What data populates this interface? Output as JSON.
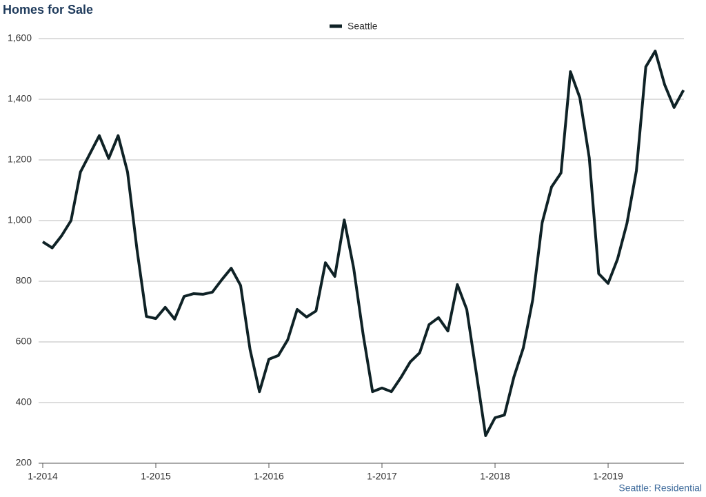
{
  "chart_data": {
    "type": "line",
    "title": "Homes for Sale",
    "source": "Seattle: Residential",
    "categories": [
      "1-2014",
      null,
      null,
      null,
      null,
      null,
      null,
      null,
      null,
      null,
      null,
      null,
      "1-2015",
      null,
      null,
      null,
      null,
      null,
      null,
      null,
      null,
      null,
      null,
      null,
      "1-2016",
      null,
      null,
      null,
      null,
      null,
      null,
      null,
      null,
      null,
      null,
      null,
      "1-2017",
      null,
      null,
      null,
      null,
      null,
      null,
      null,
      null,
      null,
      null,
      null,
      "1-2018",
      null,
      null,
      null,
      null,
      null,
      null,
      null,
      null,
      null,
      null,
      null,
      "1-2019",
      null,
      null,
      null,
      null,
      null,
      null,
      null,
      null
    ],
    "series": [
      {
        "name": "Seattle",
        "color": "#0f2226",
        "values": [
          930,
          910,
          950,
          1000,
          1160,
          1220,
          1280,
          1205,
          1280,
          1160,
          905,
          684,
          677,
          714,
          675,
          750,
          759,
          757,
          764,
          805,
          843,
          786,
          575,
          436,
          543,
          555,
          607,
          707,
          682,
          702,
          861,
          816,
          1002,
          843,
          625,
          436,
          448,
          436,
          482,
          534,
          564,
          657,
          680,
          636,
          789,
          707,
          500,
          291,
          350,
          359,
          484,
          580,
          739,
          993,
          1111,
          1157,
          1491,
          1405,
          1207,
          825,
          793,
          873,
          991,
          1164,
          1507,
          1559,
          1448,
          1373,
          1430
        ]
      }
    ],
    "ylim": [
      200,
      1600
    ],
    "yticks": [
      200,
      400,
      600,
      800,
      {
        "value": 1000,
        "label": "1,000"
      },
      {
        "value": 1200,
        "label": "1,200"
      },
      {
        "value": 1400,
        "label": "1,400"
      },
      {
        "value": 1600,
        "label": "1,600"
      }
    ],
    "grid": true,
    "legend": "top"
  }
}
